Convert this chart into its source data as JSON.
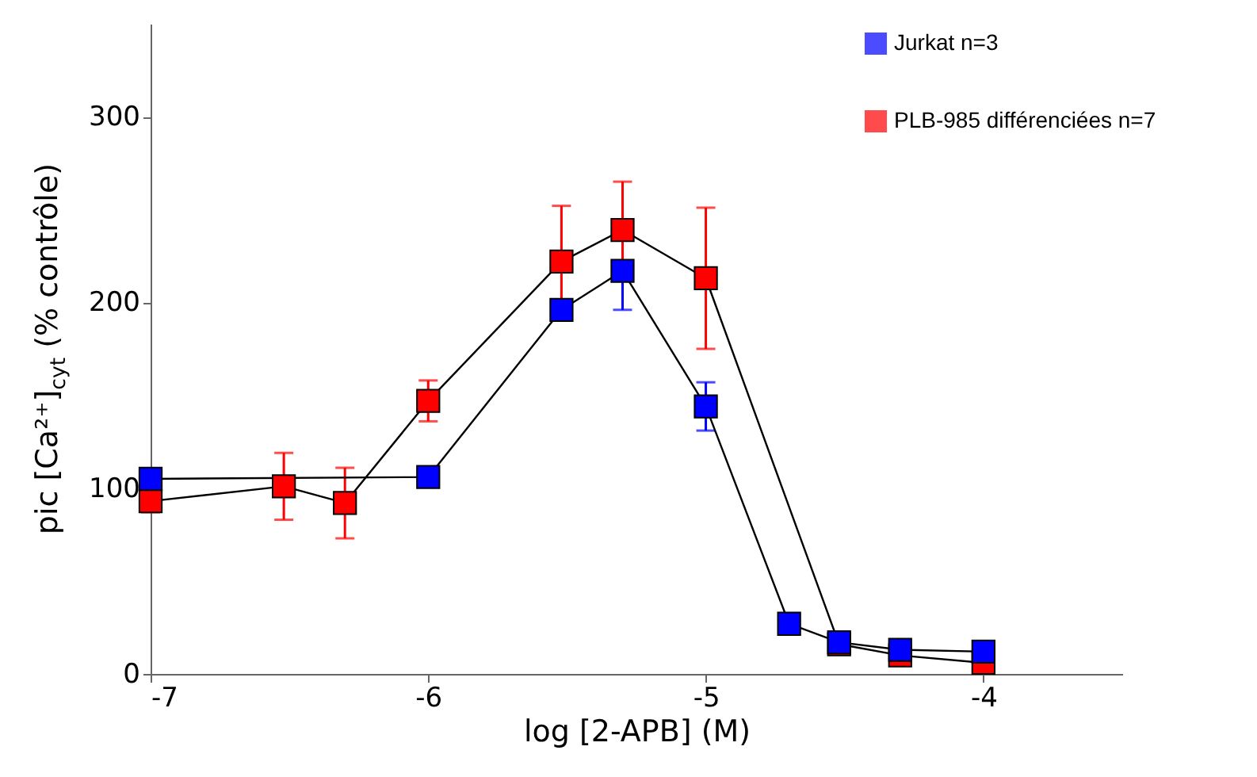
{
  "chart_data": {
    "type": "line",
    "xlabel": "log [2-APB] (M)",
    "ylabel": "pic [Ca²⁺]$_{cyt}$ (% contrôle)",
    "xlim": [
      -7,
      -3.5
    ],
    "xticks": [
      -7,
      -6,
      -5,
      -4
    ],
    "ylim": [
      0,
      350
    ],
    "yticks": [
      0,
      100,
      200,
      300
    ],
    "marker": "square",
    "line_style": "solid",
    "legend": "top right",
    "grid": false,
    "series": [
      {
        "name": "Jurkat n=3",
        "color": "#0000ff",
        "x": [
          -7,
          -6,
          -5.52,
          -5.3,
          -5,
          -4.7,
          -4.52,
          -4.3,
          -4
        ],
        "values": [
          105,
          106,
          196,
          217,
          144,
          27,
          17,
          13,
          12
        ],
        "errors": [
          null,
          null,
          null,
          21,
          13,
          null,
          null,
          null,
          null
        ]
      },
      {
        "name": "PLB-985 différenciées n=7",
        "color": "#ff0000",
        "x": [
          -7,
          -6.52,
          -6.3,
          -6,
          -5.52,
          -5.3,
          -5,
          -4.52,
          -4.3,
          -4
        ],
        "values": [
          93,
          101,
          92,
          147,
          222,
          239,
          213,
          16,
          10,
          6
        ],
        "errors": [
          6,
          18,
          19,
          11,
          30,
          26,
          38,
          null,
          null,
          null
        ]
      }
    ]
  }
}
